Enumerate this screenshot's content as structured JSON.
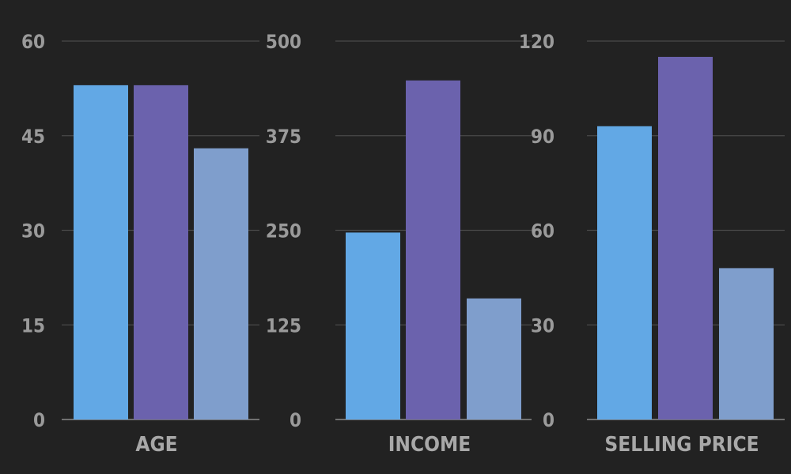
{
  "colors": {
    "background": "#222222",
    "series_a": "#62a8e5",
    "series_b": "#6b62ad",
    "series_c": "#7f9ecc",
    "tick_text": "#9a9a9a",
    "grid": "#4a4a4a"
  },
  "chart_data": [
    {
      "type": "bar",
      "xlabel": "AGE",
      "ylim": [
        0,
        60
      ],
      "yticks": [
        "0",
        "15",
        "30",
        "45",
        "60"
      ],
      "values": [
        53,
        53,
        43
      ],
      "grid": true
    },
    {
      "type": "bar",
      "xlabel": "INCOME",
      "ylim": [
        0,
        500
      ],
      "yticks": [
        "0",
        "125",
        "250",
        "375",
        "500"
      ],
      "values": [
        247,
        448,
        160
      ],
      "grid": true
    },
    {
      "type": "bar",
      "xlabel": "SELLING PRICE",
      "ylim": [
        0,
        120
      ],
      "yticks": [
        "0",
        "30",
        "60",
        "90",
        "120"
      ],
      "values": [
        93,
        115,
        48
      ],
      "grid": true
    }
  ]
}
